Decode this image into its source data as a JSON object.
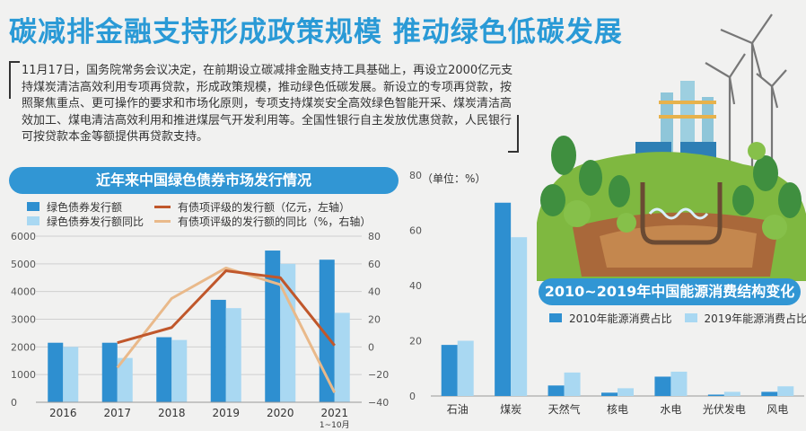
{
  "headline": "碳减排金融支持形成政策规模 推动绿色低碳发展",
  "intro": "11月17日，国务院常务会议决定，在前期设立碳减排金融支持工具基础上，再设立2000亿元支持煤炭清洁高效利用专项再贷款，形成政策规模，推动绿色低碳发展。新设立的专项再贷款，按照聚焦重点、更可操作的要求和市场化原则，专项支持煤炭安全高效绿色智能开采、煤炭清洁高效加工、煤电清洁高效利用和推进煤层气开发利用等。全国性银行自主发放优惠贷款，人民银行可按贷款本金等额提供再贷款支持。",
  "colors": {
    "dark_blue": "#2e8fd0",
    "light_blue": "#a9d8f2",
    "dark_orange": "#c0572b",
    "light_orange": "#e9b98a",
    "title_blue": "#2a9ad6"
  },
  "chart_data": [
    {
      "type": "bar",
      "title": "近年来中国绿色债券市场发行情况",
      "categories": [
        "2016",
        "2017",
        "2018",
        "2019",
        "2020",
        "2021"
      ],
      "category_sublabels": [
        "",
        "",
        "",
        "",
        "",
        "1~10月"
      ],
      "series": [
        {
          "name": "绿色债券发行额",
          "kind": "bar",
          "axis": "left",
          "values": [
            2150,
            2150,
            2350,
            3700,
            5480,
            5150
          ]
        },
        {
          "name": "绿色债券发行额同比",
          "kind": "bar",
          "axis": "left",
          "values": [
            2000,
            1600,
            2250,
            3400,
            5000,
            3230
          ]
        },
        {
          "name": "有债项评级的发行额（亿元，左轴）",
          "kind": "line",
          "axis": "left",
          "values": [
            null,
            2150,
            2700,
            4750,
            4500,
            2050
          ]
        },
        {
          "name": "有债项评级的发行额的同比（%，右轴）",
          "kind": "line",
          "axis": "right",
          "values": [
            null,
            -15,
            35,
            57,
            45,
            -33
          ]
        }
      ],
      "ylim": [
        0,
        6000
      ],
      "yticks": [
        "0",
        "1000",
        "2000",
        "3000",
        "4000",
        "5000",
        "6000"
      ],
      "y2lim": [
        -40,
        80
      ],
      "y2ticks": [
        "-40",
        "-20",
        "0",
        "20",
        "40",
        "60",
        "80"
      ],
      "legend": "top"
    },
    {
      "type": "bar",
      "title": "2010~2019年中国能源消费结构变化",
      "unit_label": "（单位：%）",
      "categories": [
        "石油",
        "煤炭",
        "天然气",
        "核电",
        "水电",
        "光伏发电",
        "风电"
      ],
      "series": [
        {
          "name": "2010年能源消费占比",
          "values": [
            18.5,
            70,
            3.8,
            1.2,
            7,
            0.5,
            1.5
          ]
        },
        {
          "name": "2019年能源消费占比",
          "values": [
            20,
            57.5,
            8.5,
            2.8,
            8.8,
            1.5,
            3.5
          ]
        }
      ],
      "ylim": [
        0,
        80
      ],
      "yticks": [
        "0",
        "20",
        "40",
        "60",
        "80"
      ],
      "legend": "right"
    }
  ]
}
